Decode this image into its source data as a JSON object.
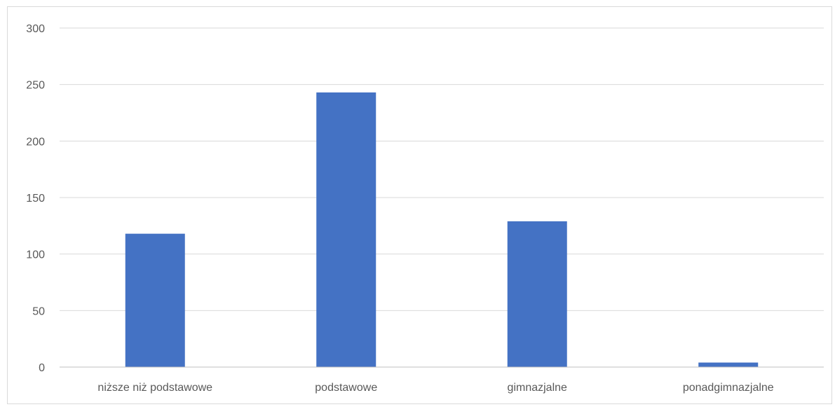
{
  "chart_data": {
    "type": "bar",
    "categories": [
      "niższe niż podstawowe",
      "podstawowe",
      "gimnazjalne",
      "ponadgimnazjalne"
    ],
    "values": [
      118,
      243,
      129,
      4
    ],
    "title": "",
    "xlabel": "",
    "ylabel": "",
    "ylim": [
      0,
      300
    ],
    "yticks": [
      0,
      50,
      100,
      150,
      200,
      250,
      300
    ],
    "grid": true,
    "legend": "none",
    "colors": {
      "bar": "#4472C4",
      "grid": "#d9d9d9",
      "axis": "#bfbfbf",
      "text": "#595959"
    }
  }
}
